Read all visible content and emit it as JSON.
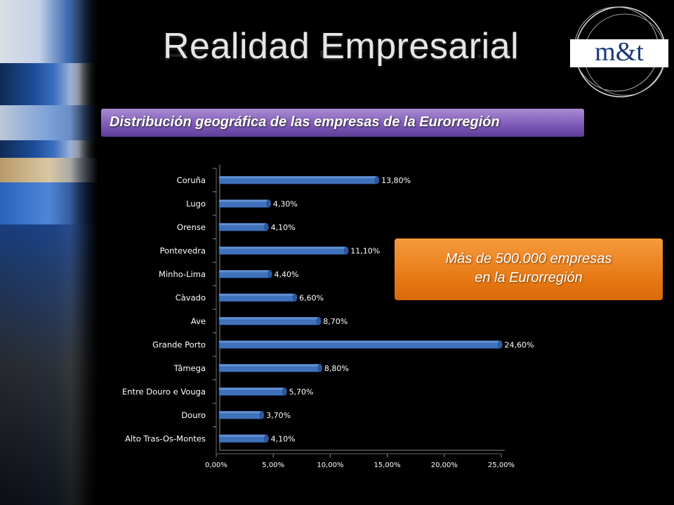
{
  "title": "Realidad Empresarial",
  "subtitle": "Distribución geográfica de las empresas de la Eurorregión",
  "logo": {
    "text": "m&t"
  },
  "callout": {
    "line1": "Más de 500.000 empresas",
    "line2": "en la Eurorregión"
  },
  "colors": {
    "bar": "#3f72bb",
    "bar_top": "#6b98d8",
    "subtitle_bg": "#7c58b7",
    "callout_bg": "#e97c17"
  },
  "chart_data": {
    "type": "bar",
    "orientation": "horizontal",
    "categories": [
      "Coruña",
      "Lugo",
      "Orense",
      "Pontevedra",
      "Minho-Lima",
      "Càvado",
      "Ave",
      "Grande Porto",
      "Tâmega",
      "Entre Douro e Vouga",
      "Douro",
      "Alto Tras-Os-Montes"
    ],
    "values": [
      13.8,
      4.3,
      4.1,
      11.1,
      4.4,
      6.6,
      8.7,
      24.6,
      8.8,
      5.7,
      3.7,
      4.1
    ],
    "value_labels": [
      "13,80%",
      "4,30%",
      "4,10%",
      "11,10%",
      "4,40%",
      "6,60%",
      "8,70%",
      "24,60%",
      "8,80%",
      "5,70%",
      "3,70%",
      "4,10%"
    ],
    "xticks": [
      "0,00%",
      "5,00%",
      "10,00%",
      "15,00%",
      "20,00%",
      "25,00%"
    ],
    "xlim": [
      0,
      25
    ],
    "grid": false,
    "legend": "none"
  }
}
